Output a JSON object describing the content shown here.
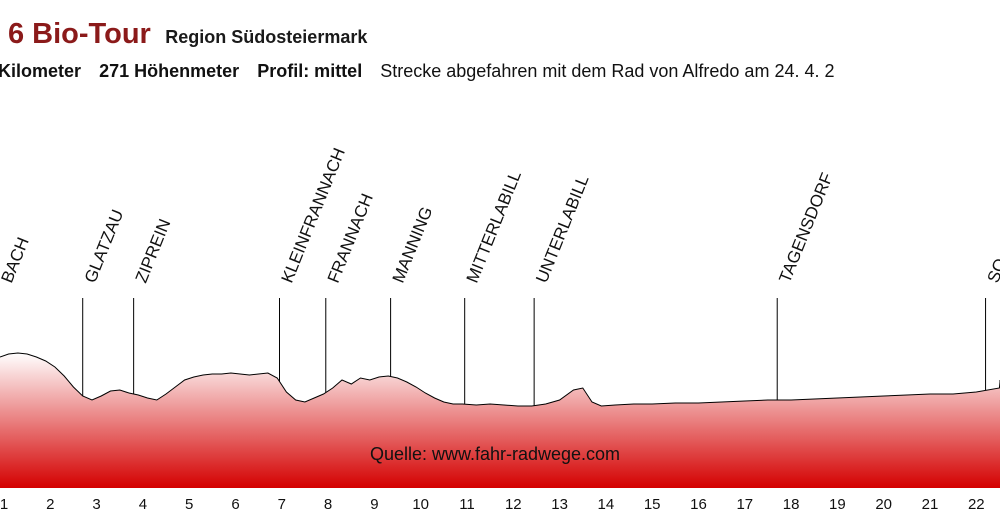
{
  "header": {
    "title": "6 Bio-Tour",
    "region": "Region Südosteiermark",
    "distance_label": "Kilometer",
    "elevation_value": "271",
    "elevation_label": "Höhenmeter",
    "profile_label": "Profil: mittel",
    "note": "Strecke abgefahren mit dem Rad von Alfredo am 24. 4. 2"
  },
  "colors": {
    "title": "#8b1a1a",
    "fill_top": "#ffffff",
    "fill_bottom": "#d40000",
    "line": "#000000"
  },
  "chart_data": {
    "type": "area",
    "title": "6 Bio-Tour",
    "source": "Quelle: www.fahr-radwege.com",
    "xlabel": "",
    "ylabel": "",
    "x_ticks": [
      1,
      2,
      3,
      4,
      5,
      6,
      7,
      8,
      9,
      10,
      11,
      12,
      13,
      14,
      15,
      16,
      17,
      18,
      19,
      20,
      21,
      22
    ],
    "x_range": [
      0.9,
      23.2
    ],
    "grid": false,
    "y_note": "relative elevation (no axis printed); 0 = baseline of profile",
    "profile": {
      "x": [
        0.9,
        1.1,
        1.3,
        1.5,
        1.7,
        1.9,
        2.1,
        2.3,
        2.5,
        2.7,
        2.9,
        3.1,
        3.3,
        3.5,
        3.7,
        3.9,
        4.1,
        4.3,
        4.5,
        4.7,
        4.9,
        5.1,
        5.3,
        5.5,
        5.7,
        5.9,
        6.1,
        6.3,
        6.5,
        6.7,
        6.9,
        7.1,
        7.3,
        7.5,
        7.7,
        7.9,
        8.1,
        8.3,
        8.5,
        8.7,
        8.9,
        9.1,
        9.3,
        9.5,
        9.7,
        9.9,
        10.1,
        10.3,
        10.5,
        10.7,
        10.9,
        11.2,
        11.5,
        11.8,
        12.1,
        12.4,
        12.7,
        13.0,
        13.3,
        13.5,
        13.7,
        13.9,
        14.2,
        14.6,
        15.0,
        15.5,
        16.0,
        16.5,
        17.0,
        17.5,
        18.0,
        18.5,
        19.0,
        19.5,
        20.0,
        20.5,
        21.0,
        21.5,
        22.0,
        22.5,
        23.0,
        23.2
      ],
      "y": [
        55,
        58,
        59,
        58,
        55,
        51,
        45,
        36,
        25,
        16,
        12,
        16,
        21,
        22,
        19,
        17,
        14,
        12,
        18,
        25,
        32,
        35,
        37,
        38,
        38,
        39,
        38,
        37,
        38,
        39,
        34,
        20,
        12,
        10,
        14,
        18,
        24,
        32,
        28,
        34,
        32,
        35,
        36,
        34,
        30,
        25,
        19,
        14,
        10,
        8,
        8,
        7,
        8,
        7,
        6,
        6,
        8,
        12,
        22,
        24,
        10,
        6,
        7,
        8,
        8,
        9,
        9,
        10,
        11,
        12,
        12,
        13,
        14,
        15,
        16,
        17,
        18,
        18,
        20,
        24,
        30,
        32
      ]
    },
    "markers": [
      {
        "name": "BACH",
        "x": 0.9
      },
      {
        "name": "GLATZAU",
        "x": 2.7
      },
      {
        "name": "ZIPREIN",
        "x": 3.8
      },
      {
        "name": "KLEINFRANNACH",
        "x": 6.95
      },
      {
        "name": "FRANNACH",
        "x": 7.95
      },
      {
        "name": "MANNING",
        "x": 9.35
      },
      {
        "name": "MITTERLABILL",
        "x": 10.95
      },
      {
        "name": "UNTERLABILL",
        "x": 12.45
      },
      {
        "name": "TAGENSDORF",
        "x": 17.7
      },
      {
        "name": "SO",
        "x": 22.2
      }
    ]
  }
}
